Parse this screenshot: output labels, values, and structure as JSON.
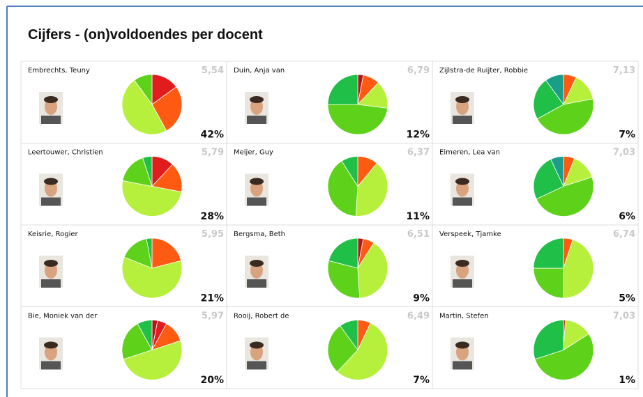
{
  "title": "Cijfers - (on)voldoendes per docent",
  "chart_data": [
    {
      "type": "pie",
      "title": "Embrechts, Teuny",
      "average": {
        "value": 5.54,
        "label": "5,54"
      },
      "percent": {
        "value": 42,
        "label": "42%"
      },
      "values": [
        15,
        27,
        48,
        10
      ],
      "colors": [
        "#e01c1c",
        "#ff5a12",
        "#b6f03c",
        "#5ed21a"
      ]
    },
    {
      "type": "pie",
      "title": "Duin, Anja van",
      "average": {
        "value": 6.79,
        "label": "6,79"
      },
      "percent": {
        "value": 12,
        "label": "12%"
      },
      "values": [
        3,
        9,
        15,
        48,
        25
      ],
      "colors": [
        "#b01818",
        "#ff5a12",
        "#b6f03c",
        "#5ed21a",
        "#1fbf48"
      ]
    },
    {
      "type": "pie",
      "title": "Zijlstra-de Ruijter, Robbie",
      "average": {
        "value": 7.13,
        "label": "7,13"
      },
      "percent": {
        "value": 7,
        "label": "7%"
      },
      "values": [
        7,
        15,
        45,
        23,
        10
      ],
      "colors": [
        "#ff5a12",
        "#b6f03c",
        "#5ed21a",
        "#1fbf48",
        "#1a9e8a"
      ]
    },
    {
      "type": "pie",
      "title": "Leertouwer, Christien",
      "average": {
        "value": 5.79,
        "label": "5,79"
      },
      "percent": {
        "value": 28,
        "label": "28%"
      },
      "values": [
        12,
        16,
        50,
        17,
        5
      ],
      "colors": [
        "#e01c1c",
        "#ff5a12",
        "#b6f03c",
        "#5ed21a",
        "#1fbf48"
      ]
    },
    {
      "type": "pie",
      "title": "Meijer, Guy",
      "average": {
        "value": 6.37,
        "label": "6,37"
      },
      "percent": {
        "value": 11,
        "label": "11%"
      },
      "values": [
        11,
        40,
        40,
        9
      ],
      "colors": [
        "#ff5a12",
        "#b6f03c",
        "#5ed21a",
        "#1fbf48"
      ]
    },
    {
      "type": "pie",
      "title": "Eimeren, Lea van",
      "average": {
        "value": 7.03,
        "label": "7,03"
      },
      "percent": {
        "value": 6,
        "label": "6%"
      },
      "values": [
        6,
        14,
        48,
        25,
        7
      ],
      "colors": [
        "#ff5a12",
        "#b6f03c",
        "#5ed21a",
        "#1fbf48",
        "#1a9e8a"
      ]
    },
    {
      "type": "pie",
      "title": "Keisrie, Rogier",
      "average": {
        "value": 5.95,
        "label": "5,95"
      },
      "percent": {
        "value": 21,
        "label": "21%"
      },
      "values": [
        21,
        60,
        16,
        3
      ],
      "colors": [
        "#ff5a12",
        "#b6f03c",
        "#5ed21a",
        "#1fbf48"
      ]
    },
    {
      "type": "pie",
      "title": "Bergsma, Beth",
      "average": {
        "value": 6.51,
        "label": "6,51"
      },
      "percent": {
        "value": 9,
        "label": "9%"
      },
      "values": [
        3,
        6,
        40,
        30,
        21
      ],
      "colors": [
        "#b01818",
        "#ff5a12",
        "#b6f03c",
        "#5ed21a",
        "#1fbf48"
      ]
    },
    {
      "type": "pie",
      "title": "Verspeek, Tjamke",
      "average": {
        "value": 6.74,
        "label": "6,74"
      },
      "percent": {
        "value": 5,
        "label": "5%"
      },
      "values": [
        5,
        45,
        25,
        25
      ],
      "colors": [
        "#ff5a12",
        "#b6f03c",
        "#5ed21a",
        "#1fbf48"
      ]
    },
    {
      "type": "pie",
      "title": "Bie, Moniek van der",
      "average": {
        "value": 5.97,
        "label": "5,97"
      },
      "percent": {
        "value": 20,
        "label": "20%"
      },
      "values": [
        3,
        5,
        12,
        50,
        22,
        8
      ],
      "colors": [
        "#b01818",
        "#e01c1c",
        "#ff5a12",
        "#b6f03c",
        "#5ed21a",
        "#1fbf48"
      ]
    },
    {
      "type": "pie",
      "title": "Rooij, Robert de",
      "average": {
        "value": 6.49,
        "label": "6,49"
      },
      "percent": {
        "value": 7,
        "label": "7%"
      },
      "values": [
        7,
        55,
        28,
        10
      ],
      "colors": [
        "#ff5a12",
        "#b6f03c",
        "#5ed21a",
        "#1fbf48"
      ]
    },
    {
      "type": "pie",
      "title": "Martin, Stefen",
      "average": {
        "value": 7.03,
        "label": "7,03"
      },
      "percent": {
        "value": 1,
        "label": "1%"
      },
      "values": [
        1,
        15,
        54,
        30
      ],
      "colors": [
        "#e01c1c",
        "#b6f03c",
        "#5ed21a",
        "#1fbf48"
      ]
    }
  ]
}
